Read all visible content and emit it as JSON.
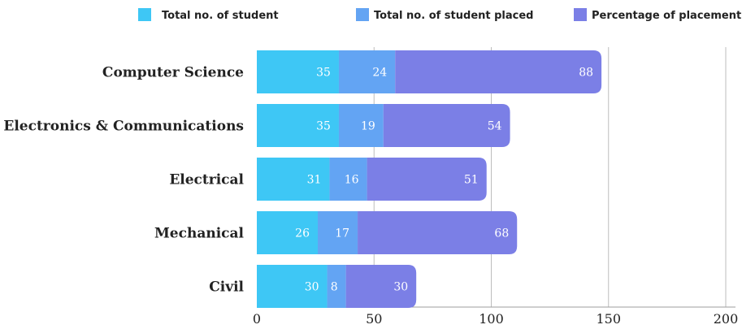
{
  "chart_data": {
    "type": "bar",
    "orientation": "horizontal",
    "stacked": true,
    "title": "",
    "xlabel": "",
    "ylabel": "",
    "categories": [
      "Computer Science",
      "Electronics & Communications",
      "Electrical",
      "Mechanical",
      "Civil"
    ],
    "series": [
      {
        "name": "Total no. of student",
        "color": "#3ec7f5",
        "values": [
          35,
          35,
          31,
          26,
          30
        ]
      },
      {
        "name": "Total no. of student placed",
        "color": "#63a4f3",
        "values": [
          24,
          19,
          16,
          17,
          8
        ]
      },
      {
        "name": "Percentage of placement",
        "color": "#7b7fe6",
        "values": [
          88,
          54,
          51,
          68,
          30
        ]
      }
    ],
    "xlim": [
      0,
      200
    ],
    "xticks": [
      "0",
      "50",
      "100",
      "150",
      "200"
    ],
    "grid": "vertical",
    "legend": "top"
  }
}
